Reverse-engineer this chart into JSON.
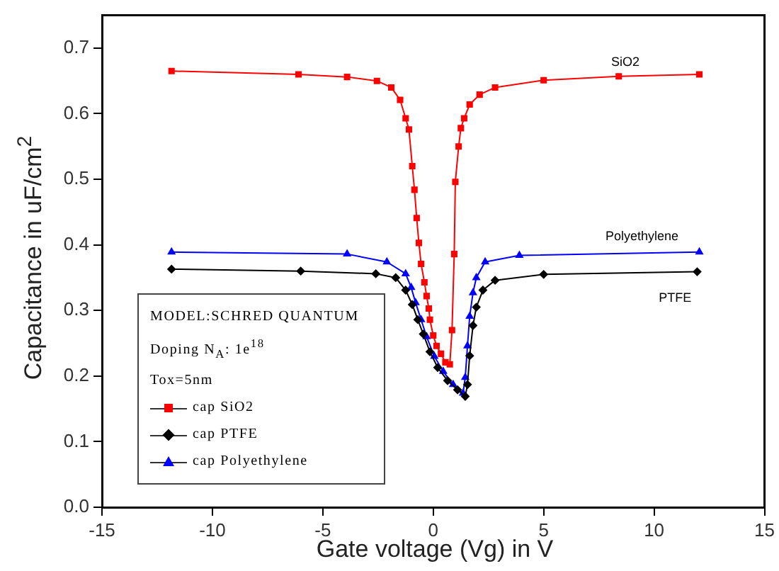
{
  "chart_data": {
    "type": "line",
    "xlabel": "Gate  voltage (Vg) in V",
    "ylabel": "Capacitance in uF/cm$^{2}$",
    "legend_title": "MODEL:SCHRED QUANTUM",
    "annotations": [
      "Doping N$_{A}$: 1e$^{18}$",
      "Tox=5nm",
      "SiO2",
      "Polyethylene",
      "PTFE"
    ],
    "xlim": [
      -15,
      15
    ],
    "xticks": [
      -15,
      -10,
      -5,
      0,
      5,
      10,
      15
    ],
    "ylim": [
      0,
      0.75
    ],
    "yticks": [
      {
        "value": 0,
        "label": "0.0"
      },
      0.1,
      0.2,
      0.3,
      0.4,
      0.5,
      0.6,
      0.7
    ],
    "grid": false,
    "legend": "bottom left",
    "line_style": "solid",
    "series": [
      {
        "name": "cap SiO2",
        "color": "#ff0000",
        "marker": "square",
        "x": [
          -11.85,
          -6.1,
          -3.9,
          -2.55,
          -1.9,
          -1.5,
          -1.25,
          -1.1,
          -0.95,
          -0.85,
          -0.75,
          -0.65,
          -0.55,
          -0.4,
          -0.3,
          -0.2,
          -0.15,
          0.0,
          0.15,
          0.35,
          0.55,
          0.75,
          0.85,
          0.95,
          1.0,
          1.15,
          1.25,
          1.4,
          1.65,
          2.1,
          2.8,
          5.0,
          8.4,
          12.05
        ],
        "values": [
          0.665,
          0.66,
          0.656,
          0.65,
          0.64,
          0.621,
          0.593,
          0.576,
          0.52,
          0.484,
          0.441,
          0.403,
          0.371,
          0.343,
          0.322,
          0.303,
          0.286,
          0.262,
          0.246,
          0.234,
          0.221,
          0.218,
          0.27,
          0.386,
          0.496,
          0.55,
          0.578,
          0.593,
          0.614,
          0.629,
          0.64,
          0.651,
          0.657,
          0.66
        ]
      },
      {
        "name": "cap PTFE",
        "color": "#000000",
        "marker": "diamond",
        "x": [
          -11.85,
          -6,
          -2.6,
          -1.7,
          -1.25,
          -0.95,
          -0.7,
          -0.45,
          -0.15,
          0.2,
          0.65,
          1.1,
          1.45,
          1.55,
          1.65,
          1.8,
          1.95,
          2.25,
          2.8,
          5.0,
          11.95
        ],
        "values": [
          0.363,
          0.36,
          0.356,
          0.35,
          0.331,
          0.309,
          0.286,
          0.264,
          0.237,
          0.213,
          0.193,
          0.179,
          0.169,
          0.187,
          0.231,
          0.277,
          0.305,
          0.331,
          0.346,
          0.355,
          0.359
        ]
      },
      {
        "name": "cap Polyethylene",
        "color": "#0000ff",
        "marker": "triangle",
        "x": [
          -11.85,
          -3.9,
          -2.1,
          -1.25,
          -1.0,
          -0.8,
          -0.55,
          -0.3,
          0.05,
          0.45,
          0.9,
          1.35,
          1.45,
          1.55,
          1.65,
          1.8,
          1.95,
          2.35,
          3.9,
          12.05
        ],
        "values": [
          0.389,
          0.386,
          0.374,
          0.356,
          0.335,
          0.312,
          0.286,
          0.26,
          0.23,
          0.207,
          0.187,
          0.174,
          0.198,
          0.246,
          0.291,
          0.327,
          0.35,
          0.374,
          0.384,
          0.389
        ]
      }
    ]
  }
}
